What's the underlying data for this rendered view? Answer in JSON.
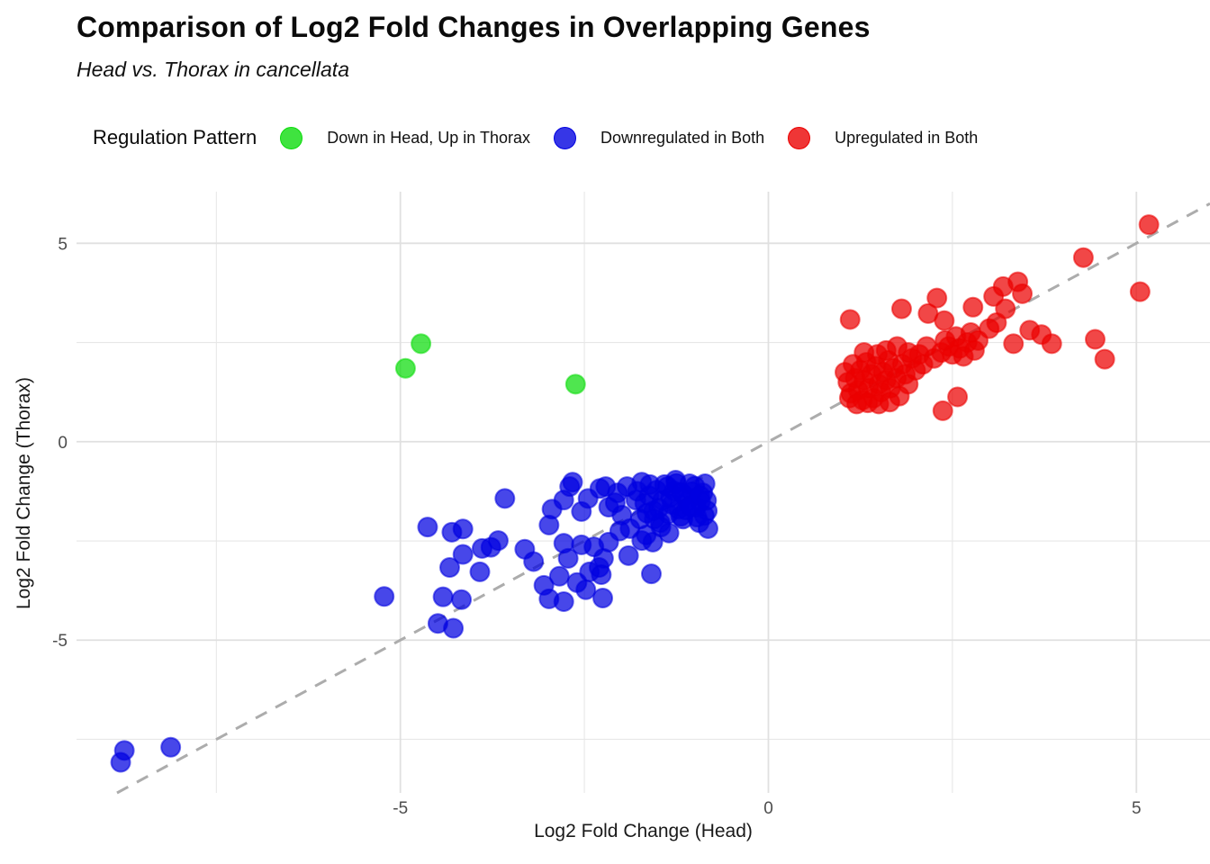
{
  "chart_data": {
    "type": "scatter",
    "title": "Comparison of Log2 Fold Changes in Overlapping Genes",
    "subtitle": "Head vs. Thorax in cancellata",
    "legend_title": "Regulation Pattern",
    "xlabel": "Log2 Fold Change (Head)",
    "ylabel": "Log2 Fold Change (Thorax)",
    "xlim": [
      -9.4,
      6.0
    ],
    "ylim": [
      -8.85,
      6.3
    ],
    "x_ticks": {
      "values": [
        -5,
        0,
        5
      ],
      "labels": [
        "-5",
        "0",
        "5"
      ]
    },
    "y_ticks": {
      "values": [
        -5,
        0,
        5
      ],
      "labels": [
        "-5",
        "0",
        "5"
      ]
    },
    "x_minor_ticks": [
      -7.5,
      -2.5,
      2.5
    ],
    "y_minor_ticks": [
      -7.5,
      -2.5,
      2.5
    ],
    "grid": "on",
    "legend_position": "top",
    "background_color": "#ffffff",
    "gridline_color": "#e7e7e7",
    "reference_line": {
      "type": "identity y=x",
      "style": "dashed",
      "color": "#acacac"
    },
    "series": [
      {
        "name": "Down in Head, Up in Thorax",
        "color": "#0bdc0b",
        "points": [
          [
            -4.72,
            2.47
          ],
          [
            -4.93,
            1.85
          ],
          [
            -2.62,
            1.45
          ]
        ]
      },
      {
        "name": "Downregulated in Both",
        "color": "#0000e0",
        "points": [
          [
            -8.75,
            -7.78
          ],
          [
            -8.8,
            -8.08
          ],
          [
            -8.12,
            -7.7
          ],
          [
            -5.22,
            -3.9
          ],
          [
            -4.63,
            -2.15
          ],
          [
            -4.3,
            -2.28
          ],
          [
            -4.15,
            -2.2
          ],
          [
            -4.33,
            -3.17
          ],
          [
            -4.15,
            -2.84
          ],
          [
            -4.42,
            -3.91
          ],
          [
            -4.17,
            -3.98
          ],
          [
            -4.49,
            -4.58
          ],
          [
            -4.28,
            -4.7
          ],
          [
            -3.89,
            -2.69
          ],
          [
            -3.77,
            -2.66
          ],
          [
            -3.67,
            -2.49
          ],
          [
            -3.92,
            -3.28
          ],
          [
            -3.58,
            -1.43
          ],
          [
            -3.31,
            -2.71
          ],
          [
            -3.19,
            -3.02
          ],
          [
            -2.98,
            -2.1
          ],
          [
            -2.94,
            -1.7
          ],
          [
            -3.05,
            -3.62
          ],
          [
            -2.48,
            -3.73
          ],
          [
            -2.78,
            -1.47
          ],
          [
            -2.7,
            -1.13
          ],
          [
            -2.78,
            -2.56
          ],
          [
            -2.72,
            -2.94
          ],
          [
            -2.84,
            -3.39
          ],
          [
            -2.98,
            -3.96
          ],
          [
            -2.78,
            -4.03
          ],
          [
            -2.6,
            -3.55
          ],
          [
            -2.43,
            -3.28
          ],
          [
            -2.3,
            -3.17
          ],
          [
            -2.54,
            -2.6
          ],
          [
            -2.37,
            -2.65
          ],
          [
            -2.24,
            -2.94
          ],
          [
            -2.17,
            -2.53
          ],
          [
            -2.54,
            -1.76
          ],
          [
            -2.45,
            -1.43
          ],
          [
            -2.29,
            -1.18
          ],
          [
            -2.17,
            -1.65
          ],
          [
            -2.05,
            -1.29
          ],
          [
            -1.99,
            -1.85
          ],
          [
            -1.88,
            -2.19
          ],
          [
            -1.72,
            -2.49
          ],
          [
            -1.57,
            -2.53
          ],
          [
            -1.9,
            -2.87
          ],
          [
            -2.27,
            -3.35
          ],
          [
            -2.25,
            -3.94
          ],
          [
            -1.59,
            -3.33
          ],
          [
            -2.66,
            -1.02
          ],
          [
            -2.21,
            -1.13
          ],
          [
            -2.08,
            -1.54
          ],
          [
            -1.92,
            -1.13
          ],
          [
            -1.8,
            -1.47
          ],
          [
            -1.72,
            -1.02
          ],
          [
            -1.62,
            -1.36
          ],
          [
            -1.56,
            -1.74
          ],
          [
            -1.47,
            -2.04
          ],
          [
            -1.37,
            -1.13
          ],
          [
            -1.31,
            -1.58
          ],
          [
            -1.26,
            -0.97
          ],
          [
            -1.19,
            -1.88
          ],
          [
            -1.14,
            -1.36
          ],
          [
            -1.07,
            -1.06
          ],
          [
            -0.98,
            -1.65
          ],
          [
            -0.94,
            -2.04
          ],
          [
            -0.89,
            -1.29
          ],
          [
            -0.83,
            -1.74
          ],
          [
            -0.82,
            -2.19
          ],
          [
            -1.78,
            -1.25
          ],
          [
            -1.68,
            -1.55
          ],
          [
            -1.52,
            -1.22
          ],
          [
            -1.44,
            -1.48
          ],
          [
            -1.36,
            -1.82
          ],
          [
            -1.28,
            -1.24
          ],
          [
            -1.22,
            -1.7
          ],
          [
            -1.16,
            -1.95
          ],
          [
            -1.1,
            -1.5
          ],
          [
            -1.04,
            -1.26
          ],
          [
            -0.97,
            -1.9
          ],
          [
            -0.92,
            -1.5
          ],
          [
            -0.86,
            -1.06
          ],
          [
            -1.61,
            -1.08
          ],
          [
            -1.49,
            -1.68
          ],
          [
            -1.41,
            -1.08
          ],
          [
            -1.33,
            -1.4
          ],
          [
            -1.25,
            -1.05
          ],
          [
            -1.18,
            -1.28
          ],
          [
            -1.12,
            -1.72
          ],
          [
            -1.06,
            -1.62
          ],
          [
            -1.0,
            -1.12
          ],
          [
            -0.93,
            -1.36
          ],
          [
            -0.87,
            -1.86
          ],
          [
            -0.84,
            -1.48
          ],
          [
            -1.74,
            -1.95
          ],
          [
            -1.65,
            -1.8
          ],
          [
            -1.55,
            -1.95
          ],
          [
            -1.46,
            -2.15
          ],
          [
            -2.02,
            -2.25
          ],
          [
            -1.35,
            -2.3
          ],
          [
            -1.66,
            -2.35
          ]
        ]
      },
      {
        "name": "Upregulated in Both",
        "color": "#eb0000",
        "points": [
          [
            1.04,
            1.75
          ],
          [
            1.08,
            1.5
          ],
          [
            1.12,
            1.22
          ],
          [
            1.15,
            1.95
          ],
          [
            1.18,
            1.6
          ],
          [
            1.22,
            1.3
          ],
          [
            1.25,
            1.8
          ],
          [
            1.28,
            1.05
          ],
          [
            1.3,
            1.55
          ],
          [
            1.33,
            2.0
          ],
          [
            1.36,
            1.35
          ],
          [
            1.4,
            1.7
          ],
          [
            1.43,
            1.1
          ],
          [
            1.46,
            1.9
          ],
          [
            1.5,
            1.45
          ],
          [
            1.53,
            1.25
          ],
          [
            1.56,
            1.75
          ],
          [
            1.6,
            1.55
          ],
          [
            1.63,
            2.05
          ],
          [
            1.66,
            1.35
          ],
          [
            1.7,
            1.85
          ],
          [
            1.74,
            1.6
          ],
          [
            1.78,
            1.15
          ],
          [
            1.82,
            1.95
          ],
          [
            1.86,
            1.7
          ],
          [
            1.9,
            1.45
          ],
          [
            1.95,
            2.1
          ],
          [
            2.0,
            1.8
          ],
          [
            2.05,
            2.2
          ],
          [
            2.1,
            1.95
          ],
          [
            1.1,
            1.1
          ],
          [
            1.2,
            0.95
          ],
          [
            1.35,
            0.98
          ],
          [
            1.5,
            0.95
          ],
          [
            1.65,
            1.0
          ],
          [
            1.48,
            2.2
          ],
          [
            1.3,
            2.25
          ],
          [
            1.6,
            2.3
          ],
          [
            1.75,
            2.4
          ],
          [
            1.9,
            2.25
          ],
          [
            2.15,
            2.4
          ],
          [
            2.25,
            2.1
          ],
          [
            2.35,
            2.25
          ],
          [
            2.45,
            2.4
          ],
          [
            2.5,
            2.2
          ],
          [
            2.6,
            2.35
          ],
          [
            2.7,
            2.5
          ],
          [
            2.55,
            2.65
          ],
          [
            2.4,
            2.55
          ],
          [
            2.65,
            2.15
          ],
          [
            2.8,
            2.3
          ],
          [
            2.75,
            2.75
          ],
          [
            2.85,
            2.55
          ],
          [
            3.0,
            2.85
          ],
          [
            3.1,
            3.0
          ],
          [
            2.37,
            0.78
          ],
          [
            2.57,
            1.13
          ],
          [
            1.11,
            3.08
          ],
          [
            1.81,
            3.35
          ],
          [
            2.17,
            3.23
          ],
          [
            2.29,
            3.62
          ],
          [
            2.39,
            3.05
          ],
          [
            2.78,
            3.39
          ],
          [
            3.06,
            3.66
          ],
          [
            3.19,
            3.91
          ],
          [
            3.39,
            4.03
          ],
          [
            3.45,
            3.73
          ],
          [
            3.22,
            3.35
          ],
          [
            3.55,
            2.81
          ],
          [
            3.71,
            2.7
          ],
          [
            3.85,
            2.47
          ],
          [
            4.44,
            2.58
          ],
          [
            4.57,
            2.08
          ],
          [
            4.28,
            4.64
          ],
          [
            5.05,
            3.78
          ],
          [
            5.17,
            5.47
          ],
          [
            3.33,
            2.47
          ]
        ]
      }
    ]
  }
}
